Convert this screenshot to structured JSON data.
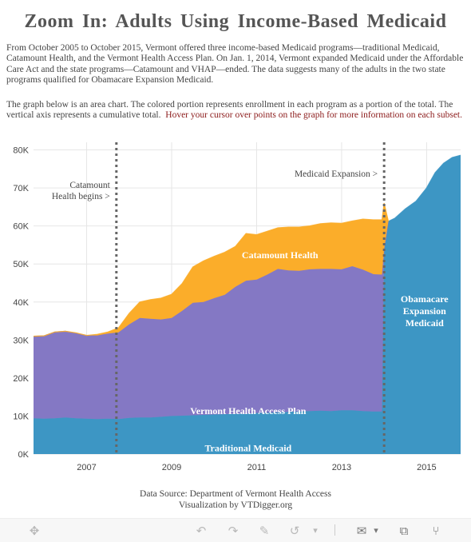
{
  "title": "Zoom In: Adults Using Income-Based Medicaid",
  "intro": "From October 2005 to October 2015, Vermont offered three income-based Medicaid programs—traditional Medicaid, Catamount Health, and the Vermont Health Access Plan. On Jan. 1, 2014, Vermont expanded Medicaid under the Affordable Care Act and the state programs—Catamount and VHAP—ended. The data suggests many of the adults in the two state programs qualified for Obamacare Expansion Medicaid.",
  "description": "The graph below is an area chart. The colored portion represents enrollment in each program as a portion of the total. The vertical axis represents a cumulative total.",
  "hover_hint": "Hover your cursor over points on the graph for more information on each subset.",
  "source_lines": [
    "Data Source: Department of Vermont Health Access",
    "Visualization by VTDigger.org"
  ],
  "modebar": [
    {
      "name": "pan-icon",
      "glyph": "✥"
    },
    {
      "name": "undo-icon",
      "glyph": "↶"
    },
    {
      "name": "redo-icon",
      "glyph": "↷"
    },
    {
      "name": "edit-icon",
      "glyph": "✎"
    },
    {
      "name": "share-link-icon",
      "glyph": "↺"
    },
    {
      "name": "dropdown-arrow-icon",
      "glyph": "▾"
    },
    {
      "name": "comment-icon",
      "glyph": "✉"
    },
    {
      "name": "comment-dropdown-icon",
      "glyph": "▾"
    },
    {
      "name": "fullscreen-icon",
      "glyph": "⧉"
    },
    {
      "name": "share-icon",
      "glyph": "⑂"
    }
  ],
  "chart_data": {
    "type": "area",
    "stacked": true,
    "x_range": [
      2005.75,
      2015.8
    ],
    "y_range": [
      0,
      82000
    ],
    "y_ticks": [
      0,
      10000,
      20000,
      30000,
      40000,
      50000,
      60000,
      70000,
      80000
    ],
    "y_tick_labels": [
      "0K",
      "10K",
      "20K",
      "30K",
      "40K",
      "50K",
      "60K",
      "70K",
      "80K"
    ],
    "x_ticks": [
      2007,
      2009,
      2011,
      2013,
      2015
    ],
    "x_tick_labels": [
      "2007",
      "2009",
      "2011",
      "2013",
      "2015"
    ],
    "grid": true,
    "series": [
      {
        "name": "Traditional Medicaid",
        "color": "#3d96c4",
        "x": [
          2005.75,
          2006.0,
          2006.25,
          2006.5,
          2006.75,
          2007.0,
          2007.25,
          2007.5,
          2007.75,
          2008.0,
          2008.25,
          2008.5,
          2008.75,
          2009.0,
          2009.25,
          2009.5,
          2009.75,
          2010.0,
          2010.25,
          2010.5,
          2010.75,
          2011.0,
          2011.25,
          2011.5,
          2011.75,
          2012.0,
          2012.25,
          2012.5,
          2012.75,
          2013.0,
          2013.25,
          2013.5,
          2013.75,
          2013.95,
          2014.0,
          2014.1,
          2014.25,
          2014.5,
          2014.75,
          2015.0,
          2015.2,
          2015.4,
          2015.6,
          2015.8
        ],
        "values": [
          9400,
          9300,
          9400,
          9600,
          9400,
          9300,
          9200,
          9300,
          9200,
          9500,
          9600,
          9600,
          9800,
          10000,
          10100,
          10200,
          10300,
          10400,
          10500,
          10600,
          10600,
          10800,
          10900,
          11000,
          11100,
          11200,
          11300,
          11400,
          11300,
          11500,
          11500,
          11300,
          11200,
          11200,
          54000,
          61200,
          62000,
          64500,
          66500,
          70000,
          74000,
          76500,
          78000,
          78600
        ]
      },
      {
        "name": "Vermont Health Access Plan",
        "color": "#8478c4",
        "x": [
          2005.75,
          2006.0,
          2006.25,
          2006.5,
          2006.75,
          2007.0,
          2007.25,
          2007.5,
          2007.75,
          2008.0,
          2008.25,
          2008.5,
          2008.75,
          2009.0,
          2009.25,
          2009.5,
          2009.75,
          2010.0,
          2010.25,
          2010.5,
          2010.75,
          2011.0,
          2011.25,
          2011.5,
          2011.75,
          2012.0,
          2012.25,
          2012.5,
          2012.75,
          2013.0,
          2013.25,
          2013.5,
          2013.75,
          2013.95,
          2014.0,
          2014.1
        ],
        "values": [
          21600,
          21800,
          22700,
          22700,
          22400,
          21900,
          22000,
          22400,
          22800,
          24600,
          26200,
          26000,
          25600,
          25800,
          27600,
          29600,
          29700,
          30600,
          31400,
          33400,
          35000,
          35100,
          36300,
          37700,
          37200,
          37000,
          37300,
          37300,
          37400,
          37100,
          37900,
          37200,
          36100,
          36000,
          0,
          0
        ]
      },
      {
        "name": "Catamount Health",
        "color": "#fbad2a",
        "x": [
          2005.75,
          2006.0,
          2006.25,
          2006.5,
          2006.75,
          2007.0,
          2007.25,
          2007.5,
          2007.75,
          2008.0,
          2008.25,
          2008.5,
          2008.75,
          2009.0,
          2009.25,
          2009.5,
          2009.75,
          2010.0,
          2010.25,
          2010.5,
          2010.75,
          2011.0,
          2011.25,
          2011.5,
          2011.75,
          2012.0,
          2012.25,
          2012.5,
          2012.75,
          2013.0,
          2013.25,
          2013.5,
          2013.75,
          2013.95,
          2014.0,
          2014.1
        ],
        "values": [
          0,
          0,
          0,
          0,
          100,
          0,
          300,
          400,
          1200,
          2900,
          4200,
          5000,
          5600,
          6200,
          7200,
          9400,
          10800,
          11000,
          11200,
          10600,
          12400,
          11800,
          11400,
          10800,
          11400,
          11500,
          11400,
          11900,
          12100,
          12100,
          11900,
          13300,
          14300,
          14400,
          12000,
          0
        ]
      }
    ],
    "labels": [
      {
        "text": "Traditional Medicaid",
        "x": 2010.8,
        "y": 700,
        "color": "#ffffff"
      },
      {
        "text": "Vermont Health Access Plan",
        "x": 2010.8,
        "y": 10500,
        "color": "#ffffff"
      },
      {
        "text": "Catamount Health",
        "x": 2011.55,
        "y": 51500,
        "color": "#ffffff"
      },
      {
        "lines": [
          "Obamacare",
          "Expansion",
          "Medicaid"
        ],
        "x": 2014.95,
        "y": 40000,
        "color": "#ffffff"
      }
    ],
    "events": [
      {
        "x": 2007.7,
        "lines": [
          "Catamount",
          "Health begins >"
        ],
        "label_y": 70000
      },
      {
        "x": 2014.0,
        "lines": [
          "Medicaid Expansion >"
        ],
        "label_y": 73000
      }
    ]
  }
}
